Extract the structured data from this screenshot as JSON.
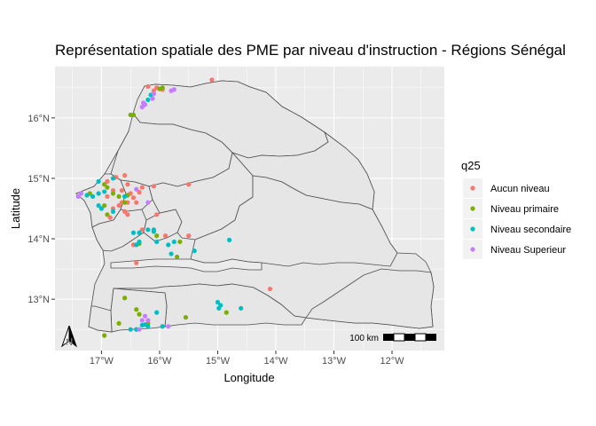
{
  "title": "Représentation spatiale des PME par niveau d'instruction - Régions Sénégal",
  "xlabel": "Longitude",
  "ylabel": "Latitude",
  "legend_title": "q25",
  "scale_bar_label": "100 km",
  "north_arrow_label": "N",
  "chart_data": {
    "type": "scatter",
    "title": "Représentation spatiale des PME par niveau d'instruction - Régions Sénégal",
    "xlabel": "Longitude",
    "ylabel": "Latitude",
    "xlim": [
      -17.8,
      -11.1
    ],
    "ylim": [
      12.15,
      16.85
    ],
    "x_ticks": [
      -17,
      -16,
      -15,
      -14,
      -13,
      -12
    ],
    "x_tick_labels": [
      "17°W",
      "16°W",
      "15°W",
      "14°W",
      "13°W",
      "12°W"
    ],
    "y_ticks": [
      13,
      14,
      15,
      16
    ],
    "y_tick_labels": [
      "13°N",
      "14°N",
      "15°N",
      "16°N"
    ],
    "legend_position": "right",
    "grid": true,
    "series": [
      {
        "name": "Aucun niveau",
        "color": "#F8766D",
        "points": [
          [
            -16.2,
            16.52
          ],
          [
            -16.05,
            16.5
          ],
          [
            -15.95,
            16.47
          ],
          [
            -16.1,
            16.45
          ],
          [
            -15.1,
            16.63
          ],
          [
            -16.75,
            15.02
          ],
          [
            -16.9,
            14.95
          ],
          [
            -16.6,
            15.05
          ],
          [
            -16.55,
            14.9
          ],
          [
            -16.65,
            14.8
          ],
          [
            -16.5,
            14.75
          ],
          [
            -16.45,
            14.68
          ],
          [
            -16.7,
            14.55
          ],
          [
            -16.6,
            14.45
          ],
          [
            -16.55,
            14.4
          ],
          [
            -16.8,
            14.5
          ],
          [
            -16.9,
            14.7
          ],
          [
            -16.3,
            14.85
          ],
          [
            -16.4,
            14.6
          ],
          [
            -16.8,
            14.8
          ],
          [
            -16.65,
            14.6
          ],
          [
            -16.55,
            14.6
          ],
          [
            -16.1,
            14.87
          ],
          [
            -16.35,
            14.77
          ],
          [
            -16.05,
            14.4
          ],
          [
            -15.5,
            14.9
          ],
          [
            -16.3,
            14.15
          ],
          [
            -16.45,
            13.9
          ],
          [
            -15.9,
            14.05
          ],
          [
            -15.5,
            14.05
          ],
          [
            -16.4,
            13.6
          ],
          [
            -14.1,
            13.17
          ],
          [
            -16.85,
            14.35
          ]
        ]
      },
      {
        "name": "Niveau primaire",
        "color": "#7CAE00",
        "points": [
          [
            -16.5,
            16.05
          ],
          [
            -16.45,
            16.05
          ],
          [
            -15.95,
            16.5
          ],
          [
            -16.0,
            16.48
          ],
          [
            -17.2,
            14.75
          ],
          [
            -16.95,
            14.9
          ],
          [
            -16.9,
            14.85
          ],
          [
            -16.8,
            14.75
          ],
          [
            -16.7,
            14.7
          ],
          [
            -16.55,
            14.72
          ],
          [
            -16.95,
            14.55
          ],
          [
            -16.9,
            14.4
          ],
          [
            -16.6,
            14.6
          ],
          [
            -15.65,
            13.95
          ],
          [
            -16.05,
            14.05
          ],
          [
            -16.35,
            13.92
          ],
          [
            -15.7,
            13.7
          ],
          [
            -16.95,
            12.4
          ],
          [
            -16.6,
            13.02
          ],
          [
            -16.4,
            12.83
          ],
          [
            -16.2,
            12.6
          ],
          [
            -16.4,
            12.5
          ],
          [
            -16.35,
            12.75
          ],
          [
            -15.55,
            12.7
          ],
          [
            -14.85,
            12.78
          ],
          [
            -16.7,
            12.6
          ]
        ]
      },
      {
        "name": "Niveau secondaire",
        "color": "#00BFC4",
        "points": [
          [
            -16.15,
            16.38
          ],
          [
            -16.2,
            16.3
          ],
          [
            -17.05,
            14.95
          ],
          [
            -17.05,
            14.75
          ],
          [
            -16.95,
            14.78
          ],
          [
            -17.15,
            14.7
          ],
          [
            -17.05,
            14.55
          ],
          [
            -17.0,
            14.5
          ],
          [
            -16.8,
            14.45
          ],
          [
            -17.25,
            14.72
          ],
          [
            -16.8,
            15.0
          ],
          [
            -16.6,
            14.7
          ],
          [
            -16.35,
            14.1
          ],
          [
            -16.45,
            14.1
          ],
          [
            -16.1,
            14.15
          ],
          [
            -16.2,
            14.15
          ],
          [
            -16.4,
            13.9
          ],
          [
            -16.35,
            13.95
          ],
          [
            -15.85,
            13.9
          ],
          [
            -15.75,
            13.95
          ],
          [
            -15.8,
            13.75
          ],
          [
            -16.05,
            13.95
          ],
          [
            -15.4,
            13.8
          ],
          [
            -14.8,
            13.98
          ],
          [
            -16.1,
            14.12
          ],
          [
            -16.5,
            12.5
          ],
          [
            -16.2,
            12.55
          ],
          [
            -16.25,
            12.58
          ],
          [
            -16.05,
            12.78
          ],
          [
            -15.95,
            12.55
          ],
          [
            -16.4,
            12.5
          ],
          [
            -16.3,
            12.57
          ],
          [
            -15.0,
            12.95
          ],
          [
            -14.95,
            12.9
          ],
          [
            -14.98,
            12.85
          ],
          [
            -14.6,
            12.85
          ]
        ]
      },
      {
        "name": "Niveau Superieur",
        "color": "#C77CFF",
        "points": [
          [
            -16.3,
            16.18
          ],
          [
            -16.25,
            16.22
          ],
          [
            -16.28,
            16.25
          ],
          [
            -16.12,
            16.32
          ],
          [
            -16.1,
            16.4
          ],
          [
            -15.75,
            16.47
          ],
          [
            -15.8,
            16.45
          ],
          [
            -17.35,
            14.75
          ],
          [
            -17.4,
            14.7
          ],
          [
            -16.4,
            14.82
          ],
          [
            -16.2,
            14.6
          ],
          [
            -16.25,
            12.72
          ],
          [
            -16.2,
            12.65
          ],
          [
            -15.85,
            12.55
          ],
          [
            -16.3,
            12.65
          ],
          [
            -16.35,
            12.5
          ]
        ]
      }
    ]
  }
}
